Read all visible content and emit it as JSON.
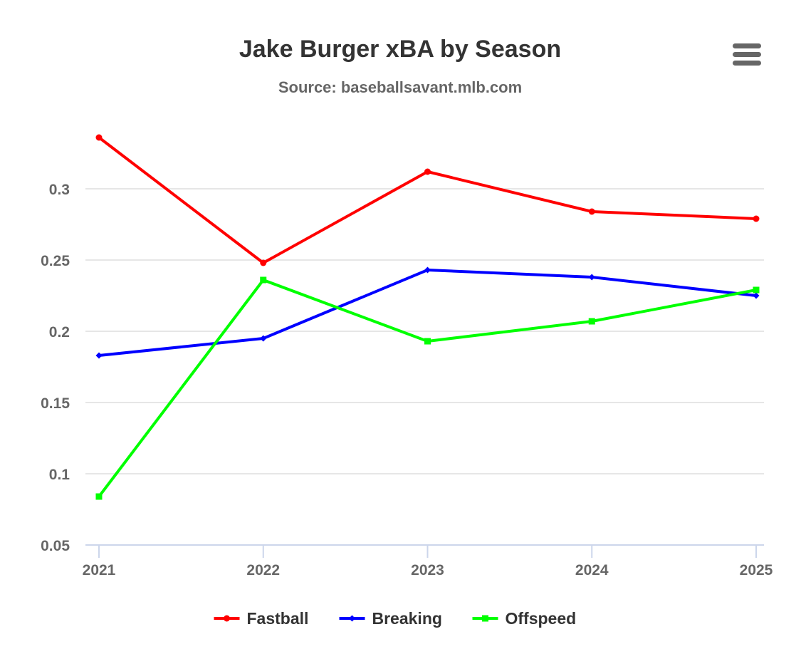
{
  "colors": {
    "background": "#ffffff",
    "title": "#333333",
    "subtitle": "#666666",
    "gridline": "#e6e6e6",
    "axis_line": "#ccd6eb",
    "tick_label": "#666666",
    "menu_icon": "#666666"
  },
  "menu": {
    "icon": "hamburger-menu-icon"
  },
  "chart_data": {
    "type": "line",
    "title": "Jake Burger xBA by Season",
    "subtitle": "Source: baseballsavant.mlb.com",
    "xlabel": "",
    "ylabel": "",
    "x": [
      "2021",
      "2022",
      "2023",
      "2024",
      "2025"
    ],
    "ylim": [
      0.05,
      0.35
    ],
    "yticks": [
      0.05,
      0.1,
      0.15,
      0.2,
      0.25,
      0.3
    ],
    "ytick_labels": [
      "0.05",
      "0.1",
      "0.15",
      "0.2",
      "0.25",
      "0.3"
    ],
    "grid": true,
    "legend": "bottom-center",
    "series": [
      {
        "name": "Fastball",
        "color": "#ff0000",
        "marker": "circle",
        "values": [
          0.336,
          0.248,
          0.312,
          0.284,
          0.279
        ]
      },
      {
        "name": "Breaking",
        "color": "#0000ff",
        "marker": "diamond",
        "values": [
          0.183,
          0.195,
          0.243,
          0.238,
          0.225
        ]
      },
      {
        "name": "Offspeed",
        "color": "#00ff00",
        "marker": "square",
        "values": [
          0.084,
          0.236,
          0.193,
          0.207,
          0.229
        ]
      }
    ]
  }
}
